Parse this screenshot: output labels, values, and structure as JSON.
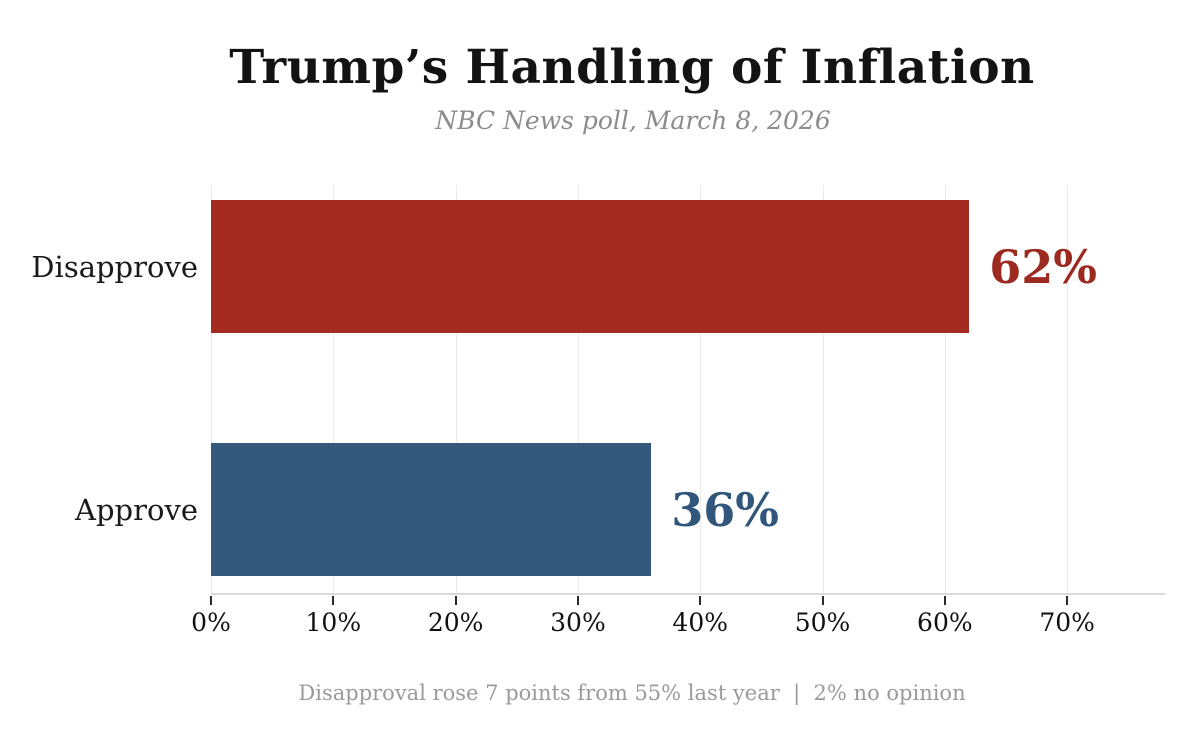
{
  "header": {
    "title": "Trump’s Handling of Inflation",
    "subtitle": "NBC News poll, March 8, 2026"
  },
  "footnote": "Disapproval rose 7 points from 55% last year  |  2% no opinion",
  "colors": {
    "disapprove_bar": "#a32b22",
    "disapprove_value_label": "#9c2a21",
    "approve_bar": "#35597c",
    "approve_value_label": "#31567b",
    "gridline": "#eaeaea",
    "axis_line": "#dadada",
    "tick_mark": "#2a2a2a",
    "category_text": "#1a1a1a",
    "muted_text": "#9a9a9a"
  },
  "chart_data": {
    "type": "bar",
    "orientation": "horizontal",
    "title": "Trump’s Handling of Inflation",
    "subtitle": "NBC News poll, March 8, 2026",
    "categories": [
      "Disapprove",
      "Approve"
    ],
    "values": [
      62,
      36
    ],
    "value_labels": [
      "62%",
      "36%"
    ],
    "bar_colors": [
      "#a32b22",
      "#35597c"
    ],
    "value_label_colors": [
      "#9c2a21",
      "#31567b"
    ],
    "xlabel": "",
    "ylabel": "",
    "xlim": [
      0,
      78
    ],
    "xticks": [
      0,
      10,
      20,
      30,
      40,
      50,
      60,
      70
    ],
    "xtick_labels": [
      "0%",
      "10%",
      "20%",
      "30%",
      "40%",
      "50%",
      "60%",
      "70%"
    ],
    "grid": "vertical gridlines at 10-point intervals, light gray",
    "legend": "none",
    "annotation": "Disapproval rose 7 points from 55% last year  |  2% no opinion"
  }
}
